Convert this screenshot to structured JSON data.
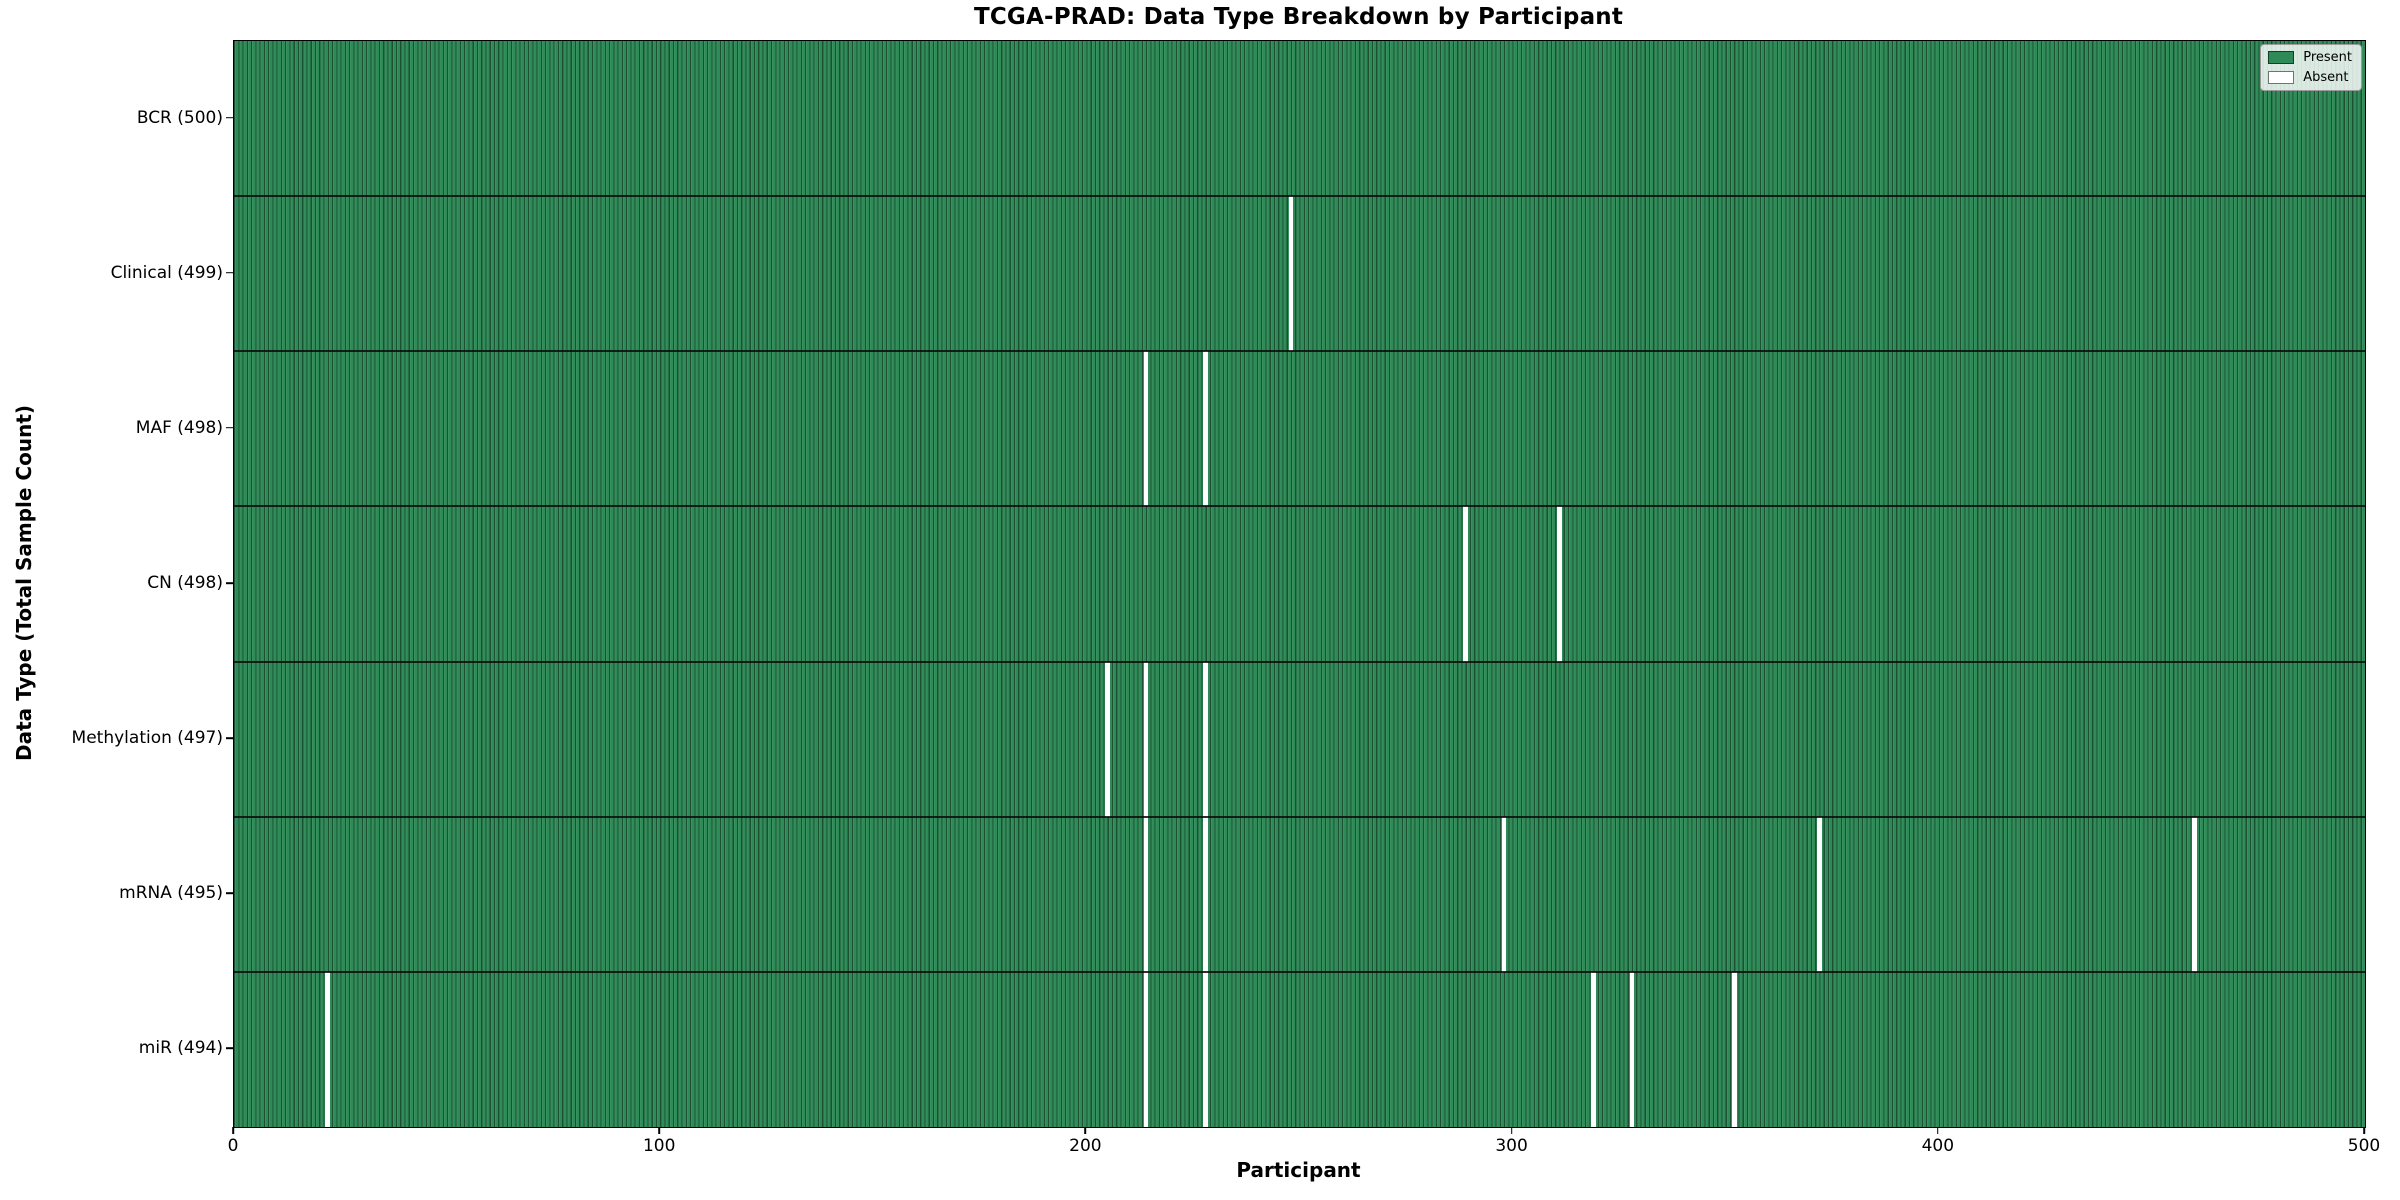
{
  "chart_data": {
    "type": "heatmap",
    "title": "TCGA-PRAD: Data Type Breakdown by Participant",
    "xlabel": "Participant",
    "ylabel": "Data Type (Total Sample Count)",
    "x_range": [
      0,
      500
    ],
    "x_ticks": [
      "0",
      "100",
      "200",
      "300",
      "400",
      "500"
    ],
    "n_participants": 500,
    "grid": false,
    "legend_position": "upper right",
    "legend": [
      {
        "label": "Present",
        "color": "#2e8b57"
      },
      {
        "label": "Absent",
        "color": "#ffffff"
      }
    ],
    "colors": {
      "present": "#2e8b57",
      "absent": "#ffffff",
      "cell_edge": "rgba(0,0,0,0.42)",
      "row_divider": "#141414"
    },
    "rows": [
      {
        "label": "BCR (500)",
        "data_type": "BCR",
        "total": 500,
        "absent_participants": []
      },
      {
        "label": "Clinical (499)",
        "data_type": "Clinical",
        "total": 499,
        "absent_participants": [
          248
        ]
      },
      {
        "label": "MAF (498)",
        "data_type": "MAF",
        "total": 498,
        "absent_participants": [
          214,
          228
        ]
      },
      {
        "label": "CN (498)",
        "data_type": "CN",
        "total": 498,
        "absent_participants": [
          289,
          311
        ]
      },
      {
        "label": "Methylation (497)",
        "data_type": "Methylation",
        "total": 497,
        "absent_participants": [
          205,
          214,
          228
        ]
      },
      {
        "label": "mRNA (495)",
        "data_type": "mRNA",
        "total": 495,
        "absent_participants": [
          214,
          228,
          298,
          372,
          460
        ]
      },
      {
        "label": "miR (494)",
        "data_type": "miR",
        "total": 494,
        "absent_participants": [
          22,
          214,
          228,
          319,
          328,
          352
        ]
      }
    ]
  }
}
